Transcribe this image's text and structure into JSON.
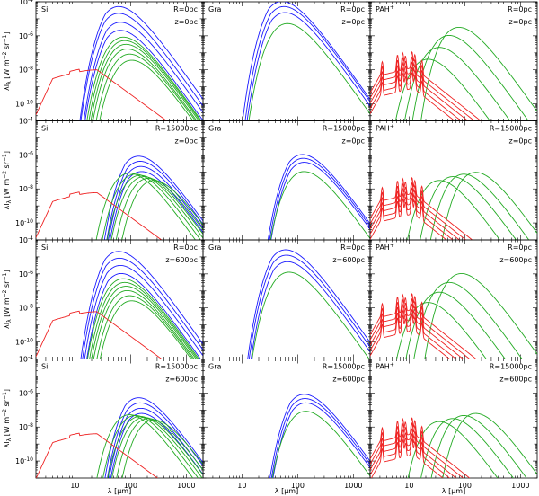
{
  "figure": {
    "rows": 4,
    "cols": 3,
    "xlabel": "λ [μm]",
    "ylabel": "λI_λ [W m^-2 sr^-1]",
    "x_tick_labels_left": [
      "10",
      "100",
      "1000"
    ],
    "x_tick_labels_mid": [
      "10",
      "100",
      "1000"
    ],
    "x_tick_labels_right": [
      "10",
      "100",
      "1000"
    ],
    "y_tick_labels": [
      "10^-4",
      "10^-6",
      "10^-8",
      "10^-10"
    ]
  },
  "colors": {
    "blue": "#1a1aff",
    "green": "#22aa22",
    "red": "#ee2222"
  },
  "chart_data": [
    {
      "type": "line",
      "row": 0,
      "col": 0,
      "dust": "Si",
      "R": "R=0pc",
      "z": "z=0pc",
      "xscale": "log",
      "yscale": "log",
      "xlim": [
        2,
        2000
      ],
      "ylim": [
        1e-11,
        0.0001
      ],
      "series": [
        {
          "color": "blue",
          "peaks": [
            [
              70,
              5e-05
            ],
            [
              70,
              2e-05
            ],
            [
              75,
              6e-06
            ],
            [
              75,
              2e-06
            ]
          ]
        },
        {
          "color": "green",
          "peaks": [
            [
              85,
              8e-07
            ],
            [
              90,
              5e-07
            ],
            [
              95,
              3e-07
            ],
            [
              100,
              1.6e-07
            ],
            [
              110,
              8e-08
            ],
            [
              120,
              3.5e-08
            ]
          ]
        },
        {
          "color": "red",
          "peaks": [
            [
              25,
              1e-08
            ]
          ]
        }
      ]
    },
    {
      "type": "line",
      "row": 0,
      "col": 1,
      "dust": "Gra",
      "R": "R=0pc",
      "z": "z=0pc",
      "xscale": "log",
      "yscale": "log",
      "xlim": [
        2,
        2000
      ],
      "ylim": [
        1e-11,
        0.0001
      ],
      "series": [
        {
          "color": "blue",
          "peaks": [
            [
              60,
              0.0001
            ],
            [
              65,
              5e-05
            ],
            [
              68,
              2.2e-05
            ]
          ]
        },
        {
          "color": "green",
          "peaks": [
            [
              75,
              5e-06
            ]
          ]
        }
      ]
    },
    {
      "type": "line",
      "row": 0,
      "col": 2,
      "dust": "PAH+",
      "R": "R=0pc",
      "z": "z=0pc",
      "xscale": "log",
      "yscale": "log",
      "xlim": [
        2,
        2000
      ],
      "ylim": [
        1e-11,
        0.0001
      ],
      "series": [
        {
          "color": "green",
          "peaks": [
            [
              25,
              4e-08
            ],
            [
              40,
              2e-07
            ],
            [
              60,
              1e-06
            ],
            [
              90,
              3e-06
            ]
          ]
        },
        {
          "color": "red",
          "peaks": [
            [
              11.3,
              1e-07
            ],
            [
              11.3,
              5e-08
            ],
            [
              11.3,
              2.5e-08
            ],
            [
              11.3,
              1.2e-08
            ],
            [
              11.3,
              6e-09
            ]
          ]
        }
      ]
    },
    {
      "type": "line",
      "row": 1,
      "col": 0,
      "dust": "Si",
      "R": "R=15000pc",
      "z": "z=0pc",
      "xscale": "log",
      "yscale": "log",
      "xlim": [
        2,
        2000
      ],
      "ylim": [
        1e-11,
        0.0001
      ],
      "series": [
        {
          "color": "blue",
          "peaks": [
            [
              160,
              8e-07
            ],
            [
              170,
              4e-07
            ],
            [
              175,
              2e-07
            ],
            [
              180,
              1e-07
            ]
          ]
        },
        {
          "color": "green",
          "peaks": [
            [
              110,
              8e-08
            ],
            [
              140,
              7e-08
            ],
            [
              170,
              6e-08
            ],
            [
              200,
              5e-08
            ],
            [
              240,
              4e-08
            ],
            [
              300,
              3e-08
            ]
          ]
        },
        {
          "color": "red",
          "peaks": [
            [
              25,
              6e-09
            ]
          ]
        }
      ]
    },
    {
      "type": "line",
      "row": 1,
      "col": 1,
      "dust": "Gra",
      "R": "R=15000pc",
      "z": "z=0pc",
      "xscale": "log",
      "yscale": "log",
      "xlim": [
        2,
        2000
      ],
      "ylim": [
        1e-11,
        0.0001
      ],
      "series": [
        {
          "color": "blue",
          "peaks": [
            [
              140,
              1e-06
            ],
            [
              145,
              6e-07
            ],
            [
              150,
              3.5e-07
            ]
          ]
        },
        {
          "color": "green",
          "peaks": [
            [
              150,
              1e-07
            ]
          ]
        }
      ]
    },
    {
      "type": "line",
      "row": 1,
      "col": 2,
      "dust": "PAH+",
      "R": "R=15000pc",
      "z": "z=0pc",
      "xscale": "log",
      "yscale": "log",
      "xlim": [
        2,
        2000
      ],
      "ylim": [
        1e-11,
        0.0001
      ],
      "series": [
        {
          "color": "green",
          "peaks": [
            [
              40,
              3e-08
            ],
            [
              70,
              5e-08
            ],
            [
              110,
              7e-08
            ],
            [
              180,
              9e-08
            ]
          ]
        },
        {
          "color": "red",
          "peaks": [
            [
              11.3,
              4e-08
            ],
            [
              11.3,
              2e-08
            ],
            [
              11.3,
              1e-08
            ],
            [
              11.3,
              5e-09
            ],
            [
              11.3,
              2.5e-09
            ]
          ]
        }
      ]
    },
    {
      "type": "line",
      "row": 2,
      "col": 0,
      "dust": "Si",
      "R": "R=0pc",
      "z": "z=600pc",
      "xscale": "log",
      "yscale": "log",
      "xlim": [
        2,
        2000
      ],
      "ylim": [
        1e-11,
        0.0001
      ],
      "series": [
        {
          "color": "blue",
          "peaks": [
            [
              70,
              2e-05
            ],
            [
              72,
              8e-06
            ],
            [
              75,
              3e-06
            ],
            [
              78,
              1e-06
            ]
          ]
        },
        {
          "color": "green",
          "peaks": [
            [
              85,
              5e-07
            ],
            [
              90,
              3e-07
            ],
            [
              95,
              1.8e-07
            ],
            [
              100,
              1e-07
            ],
            [
              110,
              5e-08
            ],
            [
              120,
              2.5e-08
            ]
          ]
        },
        {
          "color": "red",
          "peaks": [
            [
              25,
              6e-09
            ]
          ]
        }
      ]
    },
    {
      "type": "line",
      "row": 2,
      "col": 1,
      "dust": "Gra",
      "R": "R=0pc",
      "z": "z=600pc",
      "xscale": "log",
      "yscale": "log",
      "xlim": [
        2,
        2000
      ],
      "ylim": [
        1e-11,
        0.0001
      ],
      "series": [
        {
          "color": "blue",
          "peaks": [
            [
              70,
              2.5e-05
            ],
            [
              72,
              1.2e-05
            ],
            [
              75,
              5e-06
            ]
          ]
        },
        {
          "color": "green",
          "peaks": [
            [
              80,
              1.2e-06
            ]
          ]
        }
      ]
    },
    {
      "type": "line",
      "row": 2,
      "col": 2,
      "dust": "PAH+",
      "R": "R=0pc",
      "z": "z=600pc",
      "xscale": "log",
      "yscale": "log",
      "xlim": [
        2,
        2000
      ],
      "ylim": [
        1e-11,
        0.0001
      ],
      "series": [
        {
          "color": "green",
          "peaks": [
            [
              25,
              2e-08
            ],
            [
              40,
              8e-08
            ],
            [
              60,
              3e-07
            ],
            [
              100,
              1e-06
            ]
          ]
        },
        {
          "color": "red",
          "peaks": [
            [
              11.3,
              6e-08
            ],
            [
              11.3,
              3e-08
            ],
            [
              11.3,
              1.5e-08
            ],
            [
              11.3,
              7e-09
            ],
            [
              11.3,
              3.5e-09
            ]
          ]
        }
      ]
    },
    {
      "type": "line",
      "row": 3,
      "col": 0,
      "dust": "Si",
      "R": "R=15000pc",
      "z": "z=600pc",
      "xscale": "log",
      "yscale": "log",
      "xlim": [
        2,
        2000
      ],
      "ylim": [
        1e-11,
        0.0001
      ],
      "series": [
        {
          "color": "blue",
          "peaks": [
            [
              160,
              5e-07
            ],
            [
              170,
              2.5e-07
            ],
            [
              175,
              1.2e-07
            ],
            [
              180,
              6e-08
            ]
          ]
        },
        {
          "color": "green",
          "peaks": [
            [
              110,
              5e-08
            ],
            [
              140,
              4.5e-08
            ],
            [
              170,
              4e-08
            ],
            [
              200,
              3.5e-08
            ],
            [
              240,
              3e-08
            ],
            [
              300,
              2.5e-08
            ]
          ]
        },
        {
          "color": "red",
          "peaks": [
            [
              25,
              4e-09
            ]
          ]
        }
      ]
    },
    {
      "type": "line",
      "row": 3,
      "col": 1,
      "dust": "Gra",
      "R": "R=15000pc",
      "z": "z=600pc",
      "xscale": "log",
      "yscale": "log",
      "xlim": [
        2,
        2000
      ],
      "ylim": [
        1e-11,
        0.0001
      ],
      "series": [
        {
          "color": "blue",
          "peaks": [
            [
              150,
              8e-07
            ],
            [
              155,
              4.5e-07
            ],
            [
              160,
              2.5e-07
            ]
          ]
        },
        {
          "color": "green",
          "peaks": [
            [
              160,
              8e-08
            ]
          ]
        }
      ]
    },
    {
      "type": "line",
      "row": 3,
      "col": 2,
      "dust": "PAH+",
      "R": "R=15000pc",
      "z": "z=600pc",
      "xscale": "log",
      "yscale": "log",
      "xlim": [
        2,
        2000
      ],
      "ylim": [
        1e-11,
        0.0001
      ],
      "series": [
        {
          "color": "green",
          "peaks": [
            [
              40,
              2e-08
            ],
            [
              70,
              3e-08
            ],
            [
              110,
              4.5e-08
            ],
            [
              180,
              6e-08
            ]
          ]
        },
        {
          "color": "red",
          "peaks": [
            [
              11.3,
              3e-08
            ],
            [
              11.3,
              1.5e-08
            ],
            [
              11.3,
              7e-09
            ],
            [
              11.3,
              3.5e-09
            ],
            [
              11.3,
              1.7e-09
            ]
          ]
        }
      ]
    }
  ]
}
